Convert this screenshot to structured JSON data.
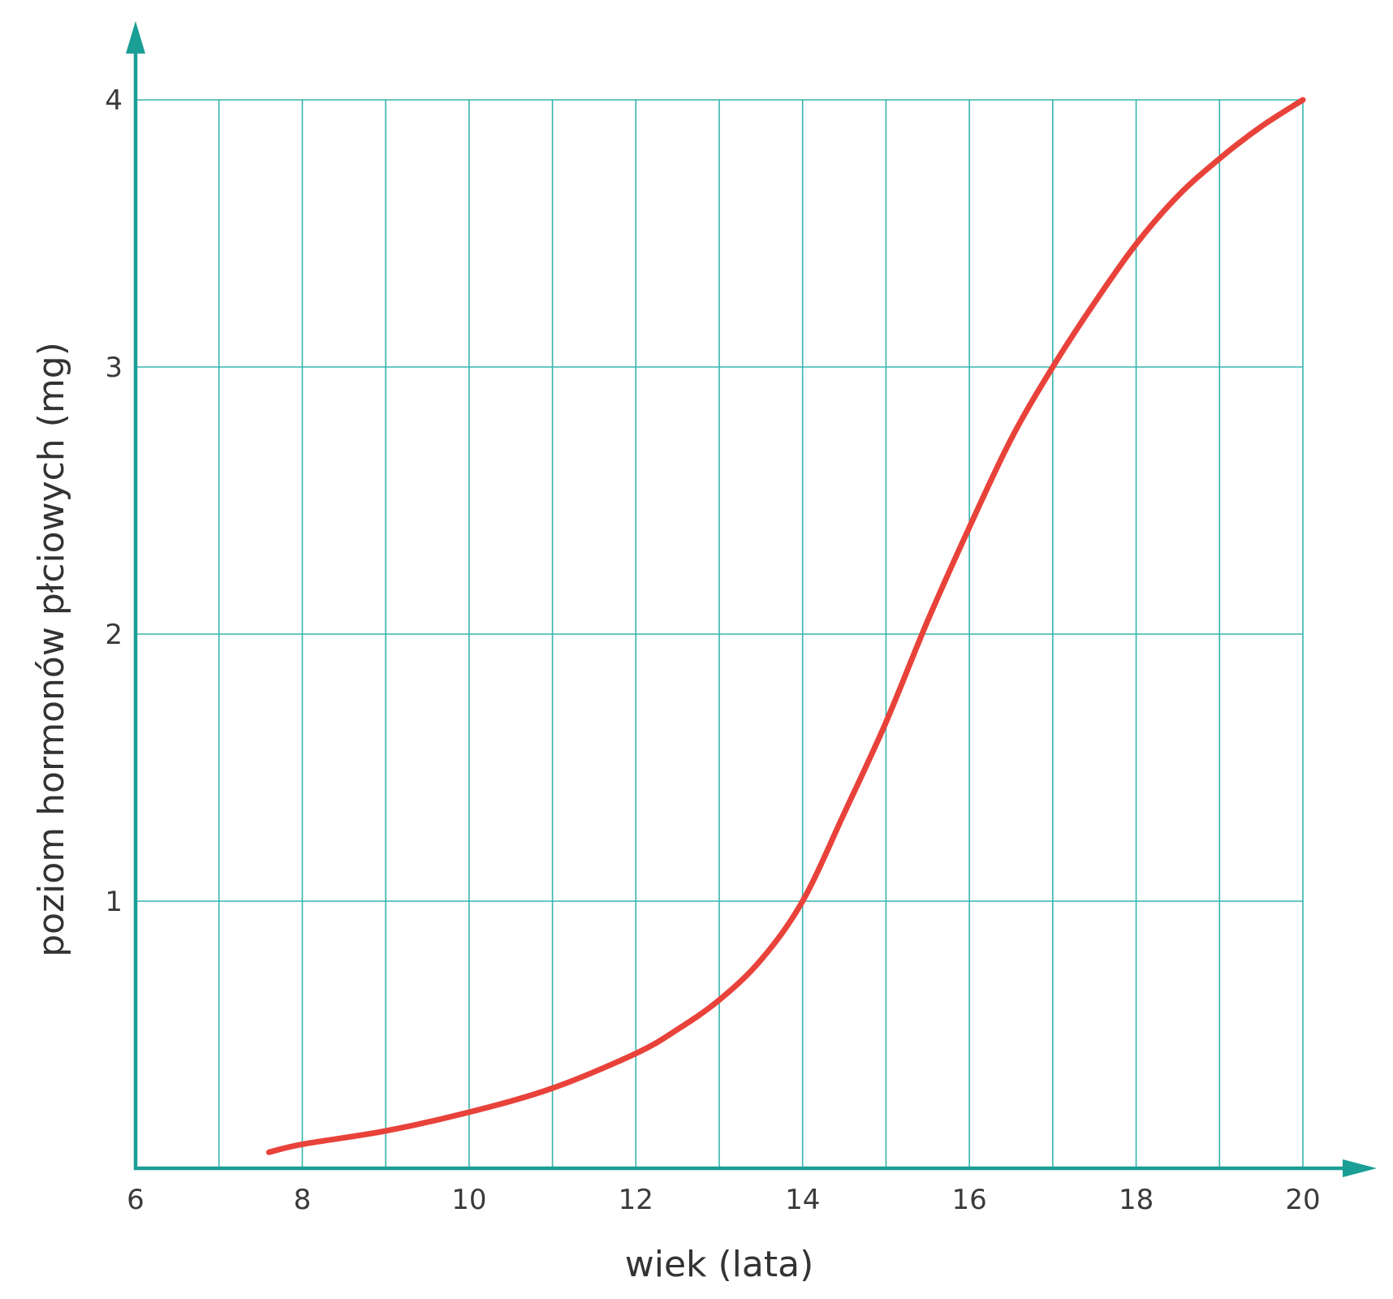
{
  "chart_data": {
    "type": "line",
    "title": "",
    "xlabel": "wiek (lata)",
    "ylabel": "poziom hormonów płciowych (mg)",
    "xlim": [
      6,
      20
    ],
    "ylim": [
      0,
      4
    ],
    "x_ticks": [
      6,
      8,
      10,
      12,
      14,
      16,
      18,
      20
    ],
    "y_ticks": [
      1,
      2,
      3,
      4
    ],
    "x_grid_step": 1,
    "y_grid_step": 1,
    "grid": true,
    "colors": {
      "axis": "#1a9e96",
      "grid": "#36b5ad",
      "line": "#e8423a"
    },
    "series": [
      {
        "x": [
          7.6,
          8,
          9,
          10,
          11,
          12,
          12.5,
          13,
          13.5,
          14,
          14.5,
          15,
          15.5,
          16,
          16.5,
          17,
          17.5,
          18,
          18.5,
          19,
          19.5,
          20
        ],
        "y": [
          0.06,
          0.09,
          0.14,
          0.21,
          0.3,
          0.43,
          0.52,
          0.63,
          0.78,
          1.0,
          1.33,
          1.67,
          2.05,
          2.4,
          2.73,
          3.0,
          3.24,
          3.46,
          3.64,
          3.78,
          3.9,
          4.0
        ]
      }
    ]
  }
}
